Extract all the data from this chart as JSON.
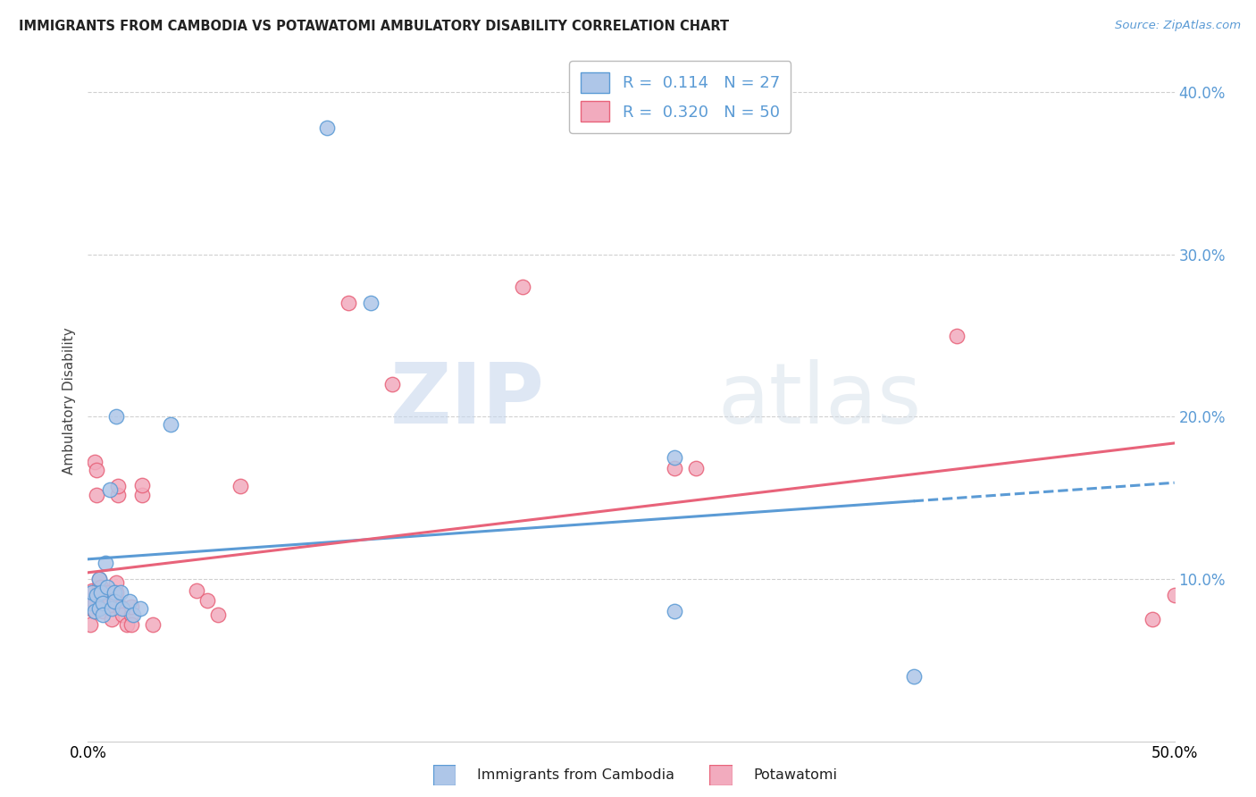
{
  "title": "IMMIGRANTS FROM CAMBODIA VS POTAWATOMI AMBULATORY DISABILITY CORRELATION CHART",
  "source": "Source: ZipAtlas.com",
  "ylabel": "Ambulatory Disability",
  "xlim": [
    0.0,
    0.5
  ],
  "ylim": [
    0.0,
    0.42
  ],
  "yticks": [
    0.1,
    0.2,
    0.3,
    0.4
  ],
  "ytick_labels": [
    "10.0%",
    "20.0%",
    "30.0%",
    "40.0%"
  ],
  "xticks": [
    0.0,
    0.1,
    0.2,
    0.3,
    0.4,
    0.5
  ],
  "xtick_labels": [
    "0.0%",
    "",
    "",
    "",
    "",
    "50.0%"
  ],
  "r1": 0.114,
  "n1": 27,
  "r2": 0.32,
  "n2": 50,
  "blue_fill": "#aec6e8",
  "pink_fill": "#f2abbe",
  "blue_edge": "#5b9bd5",
  "pink_edge": "#e8637a",
  "watermark_zip": "ZIP",
  "watermark_atlas": "atlas",
  "blue_points": [
    [
      0.001,
      0.085
    ],
    [
      0.002,
      0.092
    ],
    [
      0.003,
      0.08
    ],
    [
      0.004,
      0.09
    ],
    [
      0.005,
      0.082
    ],
    [
      0.005,
      0.1
    ],
    [
      0.006,
      0.092
    ],
    [
      0.007,
      0.085
    ],
    [
      0.007,
      0.078
    ],
    [
      0.008,
      0.11
    ],
    [
      0.009,
      0.095
    ],
    [
      0.01,
      0.155
    ],
    [
      0.011,
      0.082
    ],
    [
      0.012,
      0.092
    ],
    [
      0.012,
      0.086
    ],
    [
      0.013,
      0.2
    ],
    [
      0.015,
      0.092
    ],
    [
      0.016,
      0.082
    ],
    [
      0.019,
      0.086
    ],
    [
      0.021,
      0.078
    ],
    [
      0.024,
      0.082
    ],
    [
      0.038,
      0.195
    ],
    [
      0.11,
      0.378
    ],
    [
      0.13,
      0.27
    ],
    [
      0.27,
      0.175
    ],
    [
      0.27,
      0.08
    ],
    [
      0.38,
      0.04
    ]
  ],
  "pink_points": [
    [
      0.001,
      0.072
    ],
    [
      0.001,
      0.082
    ],
    [
      0.002,
      0.088
    ],
    [
      0.002,
      0.093
    ],
    [
      0.003,
      0.08
    ],
    [
      0.003,
      0.085
    ],
    [
      0.003,
      0.172
    ],
    [
      0.004,
      0.152
    ],
    [
      0.004,
      0.167
    ],
    [
      0.005,
      0.09
    ],
    [
      0.005,
      0.095
    ],
    [
      0.005,
      0.1
    ],
    [
      0.005,
      0.082
    ],
    [
      0.006,
      0.083
    ],
    [
      0.006,
      0.088
    ],
    [
      0.006,
      0.095
    ],
    [
      0.007,
      0.086
    ],
    [
      0.007,
      0.08
    ],
    [
      0.008,
      0.088
    ],
    [
      0.008,
      0.092
    ],
    [
      0.009,
      0.083
    ],
    [
      0.01,
      0.088
    ],
    [
      0.01,
      0.092
    ],
    [
      0.011,
      0.075
    ],
    [
      0.012,
      0.088
    ],
    [
      0.013,
      0.092
    ],
    [
      0.013,
      0.098
    ],
    [
      0.014,
      0.152
    ],
    [
      0.014,
      0.157
    ],
    [
      0.015,
      0.083
    ],
    [
      0.016,
      0.078
    ],
    [
      0.018,
      0.072
    ],
    [
      0.02,
      0.078
    ],
    [
      0.02,
      0.072
    ],
    [
      0.02,
      0.083
    ],
    [
      0.025,
      0.152
    ],
    [
      0.025,
      0.158
    ],
    [
      0.03,
      0.072
    ],
    [
      0.05,
      0.093
    ],
    [
      0.055,
      0.087
    ],
    [
      0.06,
      0.078
    ],
    [
      0.07,
      0.157
    ],
    [
      0.12,
      0.27
    ],
    [
      0.14,
      0.22
    ],
    [
      0.2,
      0.28
    ],
    [
      0.27,
      0.168
    ],
    [
      0.28,
      0.168
    ],
    [
      0.4,
      0.25
    ],
    [
      0.5,
      0.09
    ],
    [
      0.49,
      0.075
    ]
  ]
}
